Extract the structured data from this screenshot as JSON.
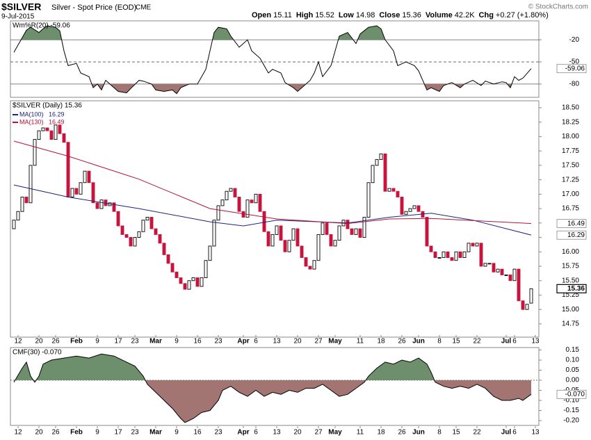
{
  "header": {
    "symbol": "$SILVER",
    "name": "Silver - Spot Price (EOD)",
    "exchange": "CME",
    "date": "9-Jul-2015",
    "copyright": "© StockCharts.com",
    "quote": [
      {
        "label": "Open",
        "value": "15.11"
      },
      {
        "label": "High",
        "value": "15.52"
      },
      {
        "label": "Low",
        "value": "14.98"
      },
      {
        "label": "Close",
        "value": "15.36"
      },
      {
        "label": "Volume",
        "value": "42.2K"
      },
      {
        "label": "Chg",
        "value": "+0.27 (+1.80%)"
      }
    ]
  },
  "chart_data": [
    {
      "type": "line",
      "title": "Wm%R(20) -59.06",
      "last_label": "-59.06",
      "color": "#000000",
      "fill_above_color": "#6e8f6b",
      "fill_below_color": "#a27472",
      "ylim": [
        -98,
        5.7
      ],
      "yticks": [
        -20,
        -50,
        -80
      ],
      "grid": true,
      "x": [
        0,
        2,
        3,
        4,
        6,
        7,
        8,
        10,
        11,
        12,
        13,
        15,
        16,
        18,
        19,
        20,
        21,
        22,
        24,
        25,
        27,
        28,
        30,
        31,
        33,
        34,
        36,
        38,
        39,
        40,
        42,
        44,
        46,
        48,
        49,
        51,
        52,
        54,
        56,
        57,
        59,
        61,
        62,
        64,
        65,
        67,
        68,
        69,
        71,
        72,
        73,
        74,
        76,
        77,
        78,
        80,
        82,
        83,
        85,
        87,
        88,
        89,
        91,
        92,
        94,
        96,
        97,
        99,
        100,
        102,
        103,
        105,
        107,
        108,
        110,
        112,
        113,
        115,
        117,
        118,
        119,
        120,
        121,
        122,
        124
      ],
      "values": [
        -37,
        -17,
        -7,
        -3,
        -10,
        -5,
        -1,
        -3,
        -8,
        -35,
        -55,
        -52,
        -65,
        -70,
        -85,
        -80,
        -88,
        -75,
        -85,
        -90,
        -92,
        -86,
        -75,
        -76,
        -80,
        -88,
        -90,
        -88,
        -93,
        -85,
        -80,
        -80,
        -60,
        -10,
        -3,
        -5,
        -15,
        -30,
        -20,
        -35,
        -45,
        -65,
        -60,
        -65,
        -78,
        -85,
        -90,
        -85,
        -75,
        -65,
        -50,
        -70,
        -55,
        -35,
        -15,
        -10,
        -25,
        -12,
        -3,
        -1,
        -5,
        -20,
        -35,
        -55,
        -50,
        -55,
        -62,
        -88,
        -85,
        -90,
        -82,
        -78,
        -85,
        -80,
        -75,
        -82,
        -76,
        -80,
        -77,
        -78,
        -85,
        -70,
        -75,
        -72,
        -59.06
      ]
    },
    {
      "type": "candlestick",
      "title": "$SILVER (Daily) 15.36",
      "last_label": "15.36",
      "up_color": "#000000",
      "down_color": "#c8143c",
      "ylim": [
        14.52,
        18.62
      ],
      "yticks": [
        {
          "value": 18.5,
          "label": "18.50"
        },
        18.25,
        {
          "value": 18,
          "label": "18.00"
        },
        17.75,
        {
          "value": 17.5,
          "label": "17.50"
        },
        17.25,
        {
          "value": 17,
          "label": "17.00"
        },
        16.75,
        {
          "value": 16.5,
          "label": "16.50"
        },
        16.25,
        {
          "value": 16,
          "label": "16.00"
        },
        15.75,
        {
          "value": 15.5,
          "label": "15.50"
        },
        15.25,
        {
          "value": 15,
          "label": "15.00"
        },
        14.75
      ],
      "xticks": [
        {
          "value": 1,
          "label": "12"
        },
        {
          "value": 6,
          "label": "20"
        },
        {
          "value": 10,
          "label": "26"
        },
        {
          "value": 15,
          "label": "Feb"
        },
        {
          "value": 20,
          "label": "9"
        },
        {
          "value": 25,
          "label": "17"
        },
        {
          "value": 29,
          "label": "23"
        },
        {
          "value": 34,
          "label": "Mar"
        },
        {
          "value": 39,
          "label": "9"
        },
        {
          "value": 44,
          "label": "16"
        },
        {
          "value": 49,
          "label": "23"
        },
        {
          "value": 55,
          "label": "Apr"
        },
        {
          "value": 58,
          "label": "6"
        },
        {
          "value": 63,
          "label": "13"
        },
        {
          "value": 68,
          "label": "20"
        },
        {
          "value": 73,
          "label": "27"
        },
        {
          "value": 77,
          "label": "May"
        },
        {
          "value": 83,
          "label": "11"
        },
        {
          "value": 88,
          "label": "18"
        },
        {
          "value": 93,
          "label": "26"
        },
        {
          "value": 97,
          "label": "Jun"
        },
        {
          "value": 102,
          "label": "8"
        },
        {
          "value": 106,
          "label": "15"
        },
        {
          "value": 111,
          "label": "22"
        },
        {
          "value": 118,
          "label": "Jul"
        },
        {
          "value": 120,
          "label": "6"
        },
        {
          "value": 125,
          "label": "13"
        }
      ],
      "open": [
        16.4,
        16.55,
        16.7,
        16.95,
        16.85,
        17.5,
        17.95,
        18.1,
        18.15,
        18.1,
        17.95,
        18.2,
        18.05,
        17.9,
        16.95,
        17.1,
        17.0,
        17.2,
        17.4,
        17.2,
        16.85,
        16.75,
        16.9,
        16.8,
        16.85,
        16.7,
        16.45,
        16.3,
        16.25,
        16.1,
        16.25,
        16.35,
        16.55,
        16.6,
        16.4,
        16.3,
        16.15,
        15.95,
        15.8,
        15.65,
        15.55,
        15.45,
        15.35,
        15.5,
        15.55,
        15.4,
        15.55,
        15.85,
        16.1,
        16.55,
        16.8,
        16.9,
        17.05,
        17.1,
        16.95,
        16.7,
        16.6,
        16.9,
        16.85,
        17.0,
        16.7,
        16.35,
        16.1,
        16.3,
        16.45,
        16.2,
        16.0,
        16.2,
        16.4,
        16.1,
        15.9,
        15.75,
        15.7,
        15.85,
        16.3,
        16.5,
        16.3,
        16.1,
        16.2,
        16.45,
        16.55,
        16.4,
        16.3,
        16.4,
        16.25,
        16.6,
        17.2,
        17.5,
        17.6,
        17.7,
        17.05,
        17.1,
        17.05,
        16.95,
        16.65,
        16.7,
        16.75,
        16.8,
        16.7,
        16.6,
        16.1,
        16.0,
        15.9,
        15.9,
        16.0,
        15.9,
        15.85,
        16.0,
        15.9,
        16.0,
        16.15,
        16.1,
        16.15,
        15.75,
        15.8,
        15.8,
        15.65,
        15.7,
        15.6,
        15.6,
        15.5,
        15.7,
        15.15,
        15.0,
        15.11
      ],
      "close": [
        16.55,
        16.7,
        16.95,
        16.85,
        17.5,
        17.95,
        18.1,
        18.15,
        18.1,
        17.95,
        18.2,
        18.05,
        17.9,
        16.95,
        17.1,
        17.0,
        17.2,
        17.4,
        17.2,
        16.85,
        16.75,
        16.9,
        16.8,
        16.85,
        16.7,
        16.45,
        16.3,
        16.25,
        16.1,
        16.25,
        16.35,
        16.55,
        16.6,
        16.4,
        16.3,
        16.15,
        15.95,
        15.8,
        15.65,
        15.55,
        15.45,
        15.35,
        15.5,
        15.55,
        15.4,
        15.55,
        15.85,
        16.1,
        16.55,
        16.8,
        16.9,
        17.05,
        17.1,
        16.95,
        16.7,
        16.6,
        16.9,
        16.85,
        17.0,
        16.7,
        16.35,
        16.1,
        16.3,
        16.45,
        16.2,
        16.0,
        16.2,
        16.4,
        16.1,
        15.9,
        15.75,
        15.7,
        15.85,
        16.3,
        16.5,
        16.3,
        16.1,
        16.2,
        16.45,
        16.55,
        16.4,
        16.3,
        16.4,
        16.25,
        16.6,
        17.2,
        17.5,
        17.6,
        17.7,
        17.05,
        17.1,
        17.05,
        16.95,
        16.65,
        16.7,
        16.75,
        16.8,
        16.7,
        16.6,
        16.1,
        16.0,
        15.9,
        15.9,
        16.0,
        15.9,
        15.85,
        16.0,
        15.9,
        16.0,
        16.15,
        16.1,
        16.15,
        15.75,
        15.8,
        15.8,
        15.65,
        15.7,
        15.6,
        15.6,
        15.5,
        15.7,
        15.15,
        15.0,
        15.09,
        15.36
      ],
      "series": [
        {
          "name": "MA(100)",
          "legend_value": "16.29",
          "color": "#1a237e",
          "x": [
            0,
            13,
            30,
            47,
            55,
            63,
            80,
            90,
            100,
            110,
            124
          ],
          "values": [
            17.16,
            16.95,
            16.75,
            16.52,
            16.45,
            16.55,
            16.5,
            16.6,
            16.67,
            16.55,
            16.29
          ]
        },
        {
          "name": "MA(130)",
          "legend_value": "16.49",
          "color": "#b3123a",
          "x": [
            0,
            13,
            30,
            47,
            63,
            80,
            90,
            100,
            124
          ],
          "values": [
            17.92,
            17.66,
            17.26,
            16.75,
            16.57,
            16.49,
            16.57,
            16.58,
            16.49
          ]
        }
      ]
    },
    {
      "type": "area",
      "title": "CMF(30) -0.070",
      "last_label": "-0.070",
      "color": "#000000",
      "fill_above_color": "#6e8f6b",
      "fill_below_color": "#a27472",
      "ylim": [
        -0.224,
        0.162
      ],
      "yticks": [
        0.15,
        {
          "value": 0.1,
          "label": "0.10"
        },
        0.05,
        {
          "value": 0,
          "label": "0.00"
        },
        -0.05,
        {
          "value": -0.1,
          "label": "-0.10"
        },
        -0.15,
        {
          "value": -0.2,
          "label": "-0.20"
        }
      ],
      "x": [
        0,
        2,
        3,
        4,
        5,
        6,
        7,
        9,
        12,
        15,
        18,
        21,
        24,
        27,
        29,
        31,
        32,
        34,
        36,
        38,
        40,
        41,
        43,
        45,
        47,
        49,
        50,
        52,
        54,
        56,
        58,
        60,
        62,
        64,
        66,
        68,
        70,
        72,
        74,
        76,
        78,
        80,
        82,
        84,
        85,
        87,
        89,
        91,
        93,
        95,
        97,
        99,
        100,
        101,
        103,
        105,
        107,
        109,
        111,
        113,
        115,
        117,
        119,
        121,
        122,
        124
      ],
      "values": [
        -0.01,
        0.06,
        0.09,
        0.02,
        -0.01,
        0.02,
        0.08,
        0.1,
        0.11,
        0.12,
        0.11,
        0.13,
        0.12,
        0.09,
        0.07,
        0.02,
        -0.02,
        -0.06,
        -0.1,
        -0.14,
        -0.19,
        -0.21,
        -0.19,
        -0.16,
        -0.15,
        -0.1,
        -0.05,
        -0.03,
        -0.06,
        -0.08,
        -0.05,
        -0.08,
        -0.06,
        -0.07,
        -0.05,
        -0.06,
        -0.04,
        -0.04,
        -0.02,
        -0.05,
        -0.08,
        -0.07,
        -0.04,
        -0.01,
        0.02,
        0.06,
        0.09,
        0.08,
        0.1,
        0.09,
        0.11,
        0.08,
        0.04,
        -0.01,
        -0.03,
        -0.04,
        -0.03,
        -0.04,
        -0.02,
        -0.04,
        -0.08,
        -0.1,
        -0.1,
        -0.09,
        -0.1,
        -0.07
      ]
    }
  ]
}
